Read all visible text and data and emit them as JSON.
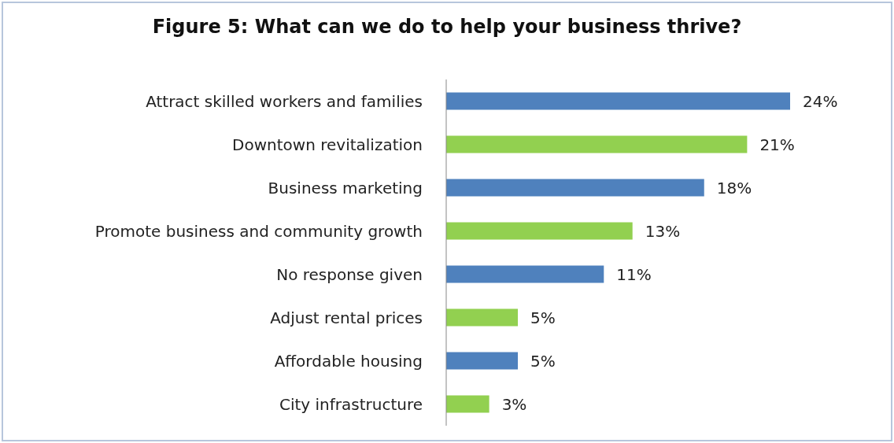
{
  "chart_data": {
    "type": "bar",
    "orientation": "horizontal",
    "title": "Figure 5: What can we do to help your business thrive?",
    "categories": [
      "Attract skilled workers and families",
      "Downtown revitalization",
      "Business marketing",
      "Promote business and community growth",
      "No response given",
      "Adjust rental prices",
      "Affordable housing",
      "City infrastructure"
    ],
    "values": [
      24,
      21,
      18,
      13,
      11,
      5,
      5,
      3
    ],
    "colors": [
      "#4f81bd",
      "#92d050",
      "#4f81bd",
      "#92d050",
      "#4f81bd",
      "#92d050",
      "#4f81bd",
      "#92d050"
    ],
    "value_labels": [
      "24%",
      "21%",
      "18%",
      "13%",
      "11%",
      "5%",
      "5%",
      "3%"
    ]
  }
}
